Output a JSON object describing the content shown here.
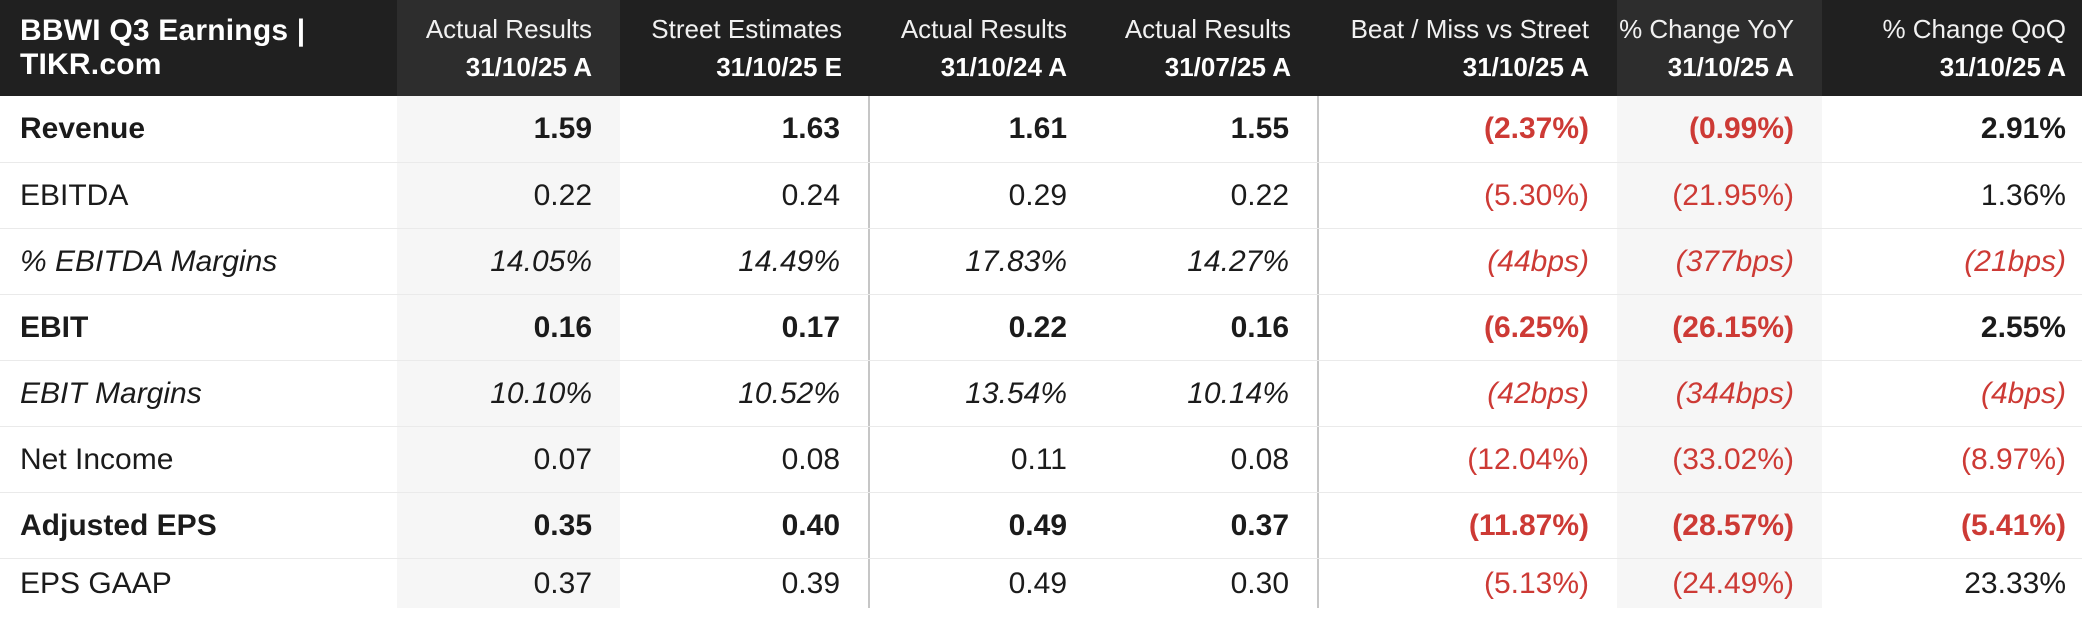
{
  "title": "BBWI Q3 Earnings | TIKR.com",
  "colors": {
    "header_bg": "#202020",
    "header_bg_shaded_column": "#2d2d2d",
    "shaded_column_bg": "#f6f6f6",
    "negative_red": "#cd3a35",
    "text": "#1b1b1b"
  },
  "chart_data": {
    "type": "table",
    "title": "BBWI Q3 Earnings | TIKR.com",
    "negative_format": "parentheses shown in red",
    "columns": [
      {
        "label": "Actual Results",
        "period": "31/10/25 A",
        "shaded": true
      },
      {
        "label": "Street Estimates",
        "period": "31/10/25 E",
        "divider_after": true
      },
      {
        "label": "Actual Results",
        "period": "31/10/24 A"
      },
      {
        "label": "Actual Results",
        "period": "31/07/25 A",
        "divider_after": true
      },
      {
        "label": "Beat / Miss vs Street",
        "period": "31/10/25 A"
      },
      {
        "label": "% Change YoY",
        "period": "31/10/25 A",
        "shaded": true
      },
      {
        "label": "% Change QoQ",
        "period": "31/10/25 A"
      }
    ],
    "rows": [
      {
        "label": "Revenue",
        "emphasis": "bold",
        "values": [
          "1.59",
          "1.63",
          "1.61",
          "1.55",
          "(2.37%)",
          "(0.99%)",
          "2.91%"
        ]
      },
      {
        "label": "EBITDA",
        "emphasis": "regular",
        "values": [
          "0.22",
          "0.24",
          "0.29",
          "0.22",
          "(5.30%)",
          "(21.95%)",
          "1.36%"
        ]
      },
      {
        "label": "% EBITDA Margins",
        "emphasis": "italic",
        "values": [
          "14.05%",
          "14.49%",
          "17.83%",
          "14.27%",
          "(44bps)",
          "(377bps)",
          "(21bps)"
        ]
      },
      {
        "label": "EBIT",
        "emphasis": "bold",
        "values": [
          "0.16",
          "0.17",
          "0.22",
          "0.16",
          "(6.25%)",
          "(26.15%)",
          "2.55%"
        ]
      },
      {
        "label": "EBIT Margins",
        "emphasis": "italic",
        "values": [
          "10.10%",
          "10.52%",
          "13.54%",
          "10.14%",
          "(42bps)",
          "(344bps)",
          "(4bps)"
        ]
      },
      {
        "label": "Net Income",
        "emphasis": "regular",
        "values": [
          "0.07",
          "0.08",
          "0.11",
          "0.08",
          "(12.04%)",
          "(33.02%)",
          "(8.97%)"
        ]
      },
      {
        "label": "Adjusted EPS",
        "emphasis": "bold",
        "values": [
          "0.35",
          "0.40",
          "0.49",
          "0.37",
          "(11.87%)",
          "(28.57%)",
          "(5.41%)"
        ]
      },
      {
        "label": "EPS GAAP",
        "emphasis": "regular",
        "values": [
          "0.37",
          "0.39",
          "0.49",
          "0.30",
          "(5.13%)",
          "(24.49%)",
          "23.33%"
        ]
      }
    ]
  }
}
